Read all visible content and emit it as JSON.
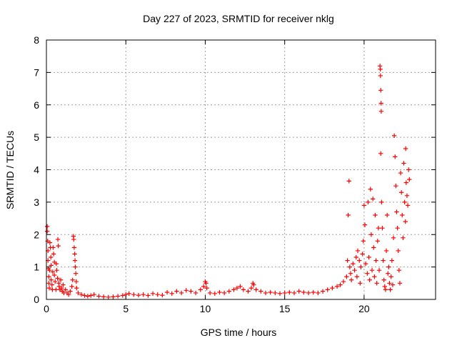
{
  "chart_data": {
    "type": "scatter",
    "title": "Day 227 of 2023, SRMTID for receiver nklg",
    "xlabel": "GPS time / hours",
    "ylabel": "SRMTID / TECUs",
    "xlim": [
      0,
      24.5
    ],
    "ylim": [
      0,
      8
    ],
    "xticks": [
      0,
      5,
      10,
      15,
      20
    ],
    "xtick_labels": [
      "0",
      "5",
      "10",
      "15",
      "20"
    ],
    "yticks": [
      0,
      1,
      2,
      3,
      4,
      5,
      6,
      7,
      8
    ],
    "ytick_labels": [
      "0",
      "1",
      "2",
      "3",
      "4",
      "5",
      "6",
      "7",
      "8"
    ],
    "grid": true,
    "marker": "plus",
    "marker_color": "#ff0000",
    "series": [
      {
        "name": "SRMTID",
        "points": [
          [
            0.05,
            2.25
          ],
          [
            0.05,
            2.1
          ],
          [
            0.08,
            1.8
          ],
          [
            0.1,
            1.5
          ],
          [
            0.1,
            1.2
          ],
          [
            0.12,
            0.95
          ],
          [
            0.15,
            0.7
          ],
          [
            0.15,
            0.5
          ],
          [
            0.18,
            0.35
          ],
          [
            0.2,
            0.9
          ],
          [
            0.22,
            1.75
          ],
          [
            0.25,
            1.6
          ],
          [
            0.28,
            1.3
          ],
          [
            0.3,
            1.05
          ],
          [
            0.3,
            0.6
          ],
          [
            0.35,
            0.45
          ],
          [
            0.38,
            0.3
          ],
          [
            0.4,
            0.85
          ],
          [
            0.42,
            1.6
          ],
          [
            0.45,
            1.4
          ],
          [
            0.5,
            1.15
          ],
          [
            0.5,
            0.75
          ],
          [
            0.55,
            0.55
          ],
          [
            0.6,
            0.3
          ],
          [
            0.62,
            1.1
          ],
          [
            0.65,
            0.9
          ],
          [
            0.7,
            0.65
          ],
          [
            0.72,
            1.85
          ],
          [
            0.75,
            1.65
          ],
          [
            0.78,
            0.5
          ],
          [
            0.8,
            0.4
          ],
          [
            0.85,
            0.3
          ],
          [
            0.9,
            0.6
          ],
          [
            0.95,
            0.35
          ],
          [
            1.0,
            0.25
          ],
          [
            1.05,
            0.45
          ],
          [
            1.1,
            0.2
          ],
          [
            1.2,
            0.3
          ],
          [
            1.3,
            0.2
          ],
          [
            1.4,
            0.15
          ],
          [
            1.5,
            0.25
          ],
          [
            1.6,
            0.4
          ],
          [
            1.65,
            0.6
          ],
          [
            1.7,
            1.95
          ],
          [
            1.72,
            1.85
          ],
          [
            1.75,
            1.6
          ],
          [
            1.78,
            1.4
          ],
          [
            1.8,
            1.2
          ],
          [
            1.82,
            1.0
          ],
          [
            1.85,
            0.8
          ],
          [
            1.88,
            0.55
          ],
          [
            1.9,
            0.35
          ],
          [
            2.0,
            0.2
          ],
          [
            2.2,
            0.15
          ],
          [
            2.4,
            0.12
          ],
          [
            2.6,
            0.1
          ],
          [
            2.8,
            0.12
          ],
          [
            3.0,
            0.15
          ],
          [
            3.3,
            0.1
          ],
          [
            3.6,
            0.08
          ],
          [
            3.9,
            0.07
          ],
          [
            4.2,
            0.08
          ],
          [
            4.5,
            0.1
          ],
          [
            4.8,
            0.12
          ],
          [
            5.0,
            0.15
          ],
          [
            5.2,
            0.18
          ],
          [
            5.5,
            0.15
          ],
          [
            5.8,
            0.13
          ],
          [
            6.1,
            0.15
          ],
          [
            6.4,
            0.12
          ],
          [
            6.7,
            0.18
          ],
          [
            7.0,
            0.15
          ],
          [
            7.3,
            0.13
          ],
          [
            7.6,
            0.22
          ],
          [
            7.9,
            0.18
          ],
          [
            8.2,
            0.25
          ],
          [
            8.5,
            0.2
          ],
          [
            8.8,
            0.28
          ],
          [
            9.1,
            0.25
          ],
          [
            9.4,
            0.2
          ],
          [
            9.7,
            0.3
          ],
          [
            9.9,
            0.4
          ],
          [
            10.0,
            0.55
          ],
          [
            10.05,
            0.5
          ],
          [
            10.1,
            0.35
          ],
          [
            10.3,
            0.2
          ],
          [
            10.6,
            0.18
          ],
          [
            10.9,
            0.22
          ],
          [
            11.2,
            0.2
          ],
          [
            11.5,
            0.25
          ],
          [
            11.8,
            0.3
          ],
          [
            12.0,
            0.35
          ],
          [
            12.2,
            0.4
          ],
          [
            12.4,
            0.3
          ],
          [
            12.7,
            0.25
          ],
          [
            12.9,
            0.35
          ],
          [
            13.0,
            0.5
          ],
          [
            13.05,
            0.45
          ],
          [
            13.2,
            0.3
          ],
          [
            13.5,
            0.25
          ],
          [
            13.8,
            0.2
          ],
          [
            14.1,
            0.22
          ],
          [
            14.4,
            0.2
          ],
          [
            14.7,
            0.18
          ],
          [
            15.0,
            0.2
          ],
          [
            15.3,
            0.22
          ],
          [
            15.6,
            0.2
          ],
          [
            15.9,
            0.25
          ],
          [
            16.2,
            0.22
          ],
          [
            16.5,
            0.2
          ],
          [
            16.8,
            0.22
          ],
          [
            17.1,
            0.2
          ],
          [
            17.4,
            0.25
          ],
          [
            17.7,
            0.3
          ],
          [
            18.0,
            0.35
          ],
          [
            18.3,
            0.4
          ],
          [
            18.5,
            0.45
          ],
          [
            18.7,
            0.55
          ],
          [
            18.9,
            0.7
          ],
          [
            18.95,
            1.2
          ],
          [
            19.0,
            2.6
          ],
          [
            19.05,
            3.65
          ],
          [
            19.1,
            1.0
          ],
          [
            19.15,
            0.8
          ],
          [
            19.2,
            0.6
          ],
          [
            19.3,
            1.1
          ],
          [
            19.4,
            0.9
          ],
          [
            19.5,
            1.3
          ],
          [
            19.55,
            0.7
          ],
          [
            19.6,
            1.5
          ],
          [
            19.7,
            1.2
          ],
          [
            19.75,
            0.5
          ],
          [
            19.8,
            1.0
          ],
          [
            19.9,
            1.4
          ],
          [
            19.95,
            1.8
          ],
          [
            20.0,
            2.9
          ],
          [
            20.05,
            2.3
          ],
          [
            20.1,
            1.1
          ],
          [
            20.2,
            0.8
          ],
          [
            20.25,
            3.0
          ],
          [
            20.3,
            1.3
          ],
          [
            20.35,
            0.6
          ],
          [
            20.4,
            3.4
          ],
          [
            20.45,
            2.0
          ],
          [
            20.5,
            0.9
          ],
          [
            20.55,
            3.1
          ],
          [
            20.6,
            1.6
          ],
          [
            20.65,
            0.7
          ],
          [
            20.7,
            2.6
          ],
          [
            20.75,
            1.2
          ],
          [
            20.8,
            0.5
          ],
          [
            20.85,
            1.8
          ],
          [
            20.9,
            2.2
          ],
          [
            20.95,
            0.9
          ],
          [
            21.0,
            7.2
          ],
          [
            21.02,
            7.1
          ],
          [
            21.03,
            6.9
          ],
          [
            21.05,
            6.45
          ],
          [
            21.07,
            6.05
          ],
          [
            21.08,
            5.8
          ],
          [
            21.05,
            4.5
          ],
          [
            21.1,
            3.0
          ],
          [
            21.15,
            2.2
          ],
          [
            21.2,
            1.2
          ],
          [
            21.25,
            0.6
          ],
          [
            21.3,
            0.4
          ],
          [
            21.35,
            0.3
          ],
          [
            21.4,
            1.5
          ],
          [
            21.45,
            2.6
          ],
          [
            21.5,
            0.8
          ],
          [
            21.55,
            1.0
          ],
          [
            21.6,
            0.5
          ],
          [
            21.65,
            0.3
          ],
          [
            21.7,
            0.7
          ],
          [
            21.75,
            1.2
          ],
          [
            21.8,
            0.45
          ],
          [
            21.85,
            1.9
          ],
          [
            21.9,
            5.05
          ],
          [
            21.95,
            4.4
          ],
          [
            22.0,
            3.5
          ],
          [
            22.05,
            2.7
          ],
          [
            22.1,
            2.2
          ],
          [
            22.15,
            1.5
          ],
          [
            22.2,
            0.9
          ],
          [
            22.25,
            0.5
          ],
          [
            22.3,
            3.9
          ],
          [
            22.35,
            3.3
          ],
          [
            22.4,
            2.6
          ],
          [
            22.45,
            1.9
          ],
          [
            22.5,
            4.2
          ],
          [
            22.55,
            3.0
          ],
          [
            22.6,
            2.4
          ],
          [
            22.62,
            4.65
          ],
          [
            22.65,
            3.6
          ],
          [
            22.7,
            3.2
          ],
          [
            22.75,
            2.9
          ],
          [
            22.8,
            4.0
          ],
          [
            22.85,
            3.7
          ]
        ]
      }
    ]
  }
}
